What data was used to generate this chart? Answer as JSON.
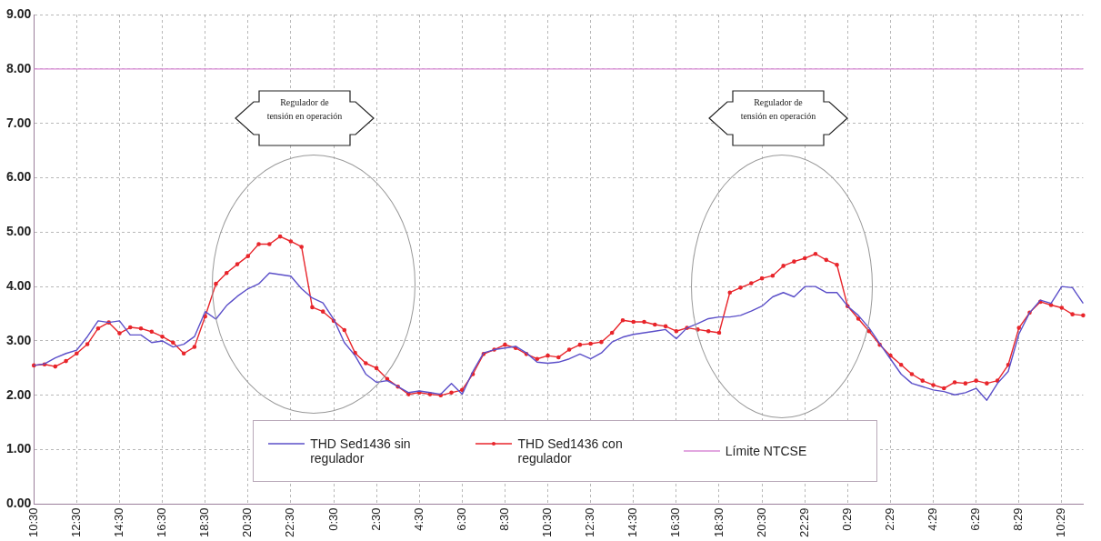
{
  "chart_data": {
    "type": "line",
    "categories": [
      "10:30",
      null,
      null,
      null,
      "12:30",
      null,
      null,
      null,
      "14:30",
      null,
      null,
      null,
      "16:30",
      null,
      null,
      null,
      "18:30",
      null,
      null,
      null,
      "20:30",
      null,
      null,
      null,
      "22:30",
      null,
      null,
      null,
      "0:30",
      null,
      null,
      null,
      "2:30",
      null,
      null,
      null,
      "4:30",
      null,
      null,
      null,
      "6:30",
      null,
      null,
      null,
      "8:30",
      null,
      null,
      null,
      "10:30",
      null,
      null,
      null,
      "12:30",
      null,
      null,
      null,
      "14:30",
      null,
      null,
      null,
      "16:30",
      null,
      null,
      null,
      "18:30",
      null,
      null,
      null,
      "20:30",
      null,
      null,
      null,
      "22:29",
      null,
      null,
      null,
      "0:29",
      null,
      null,
      null,
      "2:29",
      null,
      null,
      null,
      "4:29",
      null,
      null,
      null,
      "6:29",
      null,
      null,
      null,
      "8:29",
      null,
      null,
      null,
      "10:29",
      null,
      null
    ],
    "series": [
      {
        "name": "THD  Sed1436 sin regulador",
        "color": "#5b4fc9",
        "values": [
          2.55,
          2.58,
          2.69,
          2.77,
          2.83,
          3.08,
          3.37,
          3.34,
          3.37,
          3.11,
          3.11,
          2.97,
          3.0,
          2.89,
          2.94,
          3.08,
          3.54,
          3.4,
          3.65,
          3.82,
          3.96,
          4.05,
          4.25,
          4.22,
          4.19,
          3.96,
          3.79,
          3.7,
          3.4,
          2.97,
          2.73,
          2.39,
          2.24,
          2.27,
          2.16,
          2.05,
          2.08,
          2.05,
          2.02,
          2.22,
          2.02,
          2.44,
          2.78,
          2.84,
          2.87,
          2.9,
          2.78,
          2.61,
          2.59,
          2.61,
          2.67,
          2.76,
          2.67,
          2.78,
          2.98,
          3.07,
          3.12,
          3.15,
          3.18,
          3.21,
          3.04,
          3.24,
          3.32,
          3.41,
          3.44,
          3.44,
          3.47,
          3.55,
          3.64,
          3.81,
          3.89,
          3.81,
          4.0,
          4.0,
          3.89,
          3.89,
          3.64,
          3.47,
          3.24,
          2.95,
          2.67,
          2.39,
          2.22,
          2.16,
          2.1,
          2.07,
          2.01,
          2.05,
          2.13,
          1.91,
          2.22,
          2.44,
          3.13,
          3.52,
          3.75,
          3.69,
          4.0,
          3.98,
          3.69
        ]
      },
      {
        "name": "THD  Sed1436 con regulador",
        "color": "#e8252b",
        "marker": "circle",
        "values": [
          2.55,
          2.57,
          2.53,
          2.63,
          2.77,
          2.94,
          3.23,
          3.34,
          3.14,
          3.25,
          3.23,
          3.17,
          3.08,
          2.97,
          2.77,
          2.89,
          3.45,
          4.05,
          4.25,
          4.41,
          4.56,
          4.78,
          4.78,
          4.92,
          4.83,
          4.73,
          3.62,
          3.54,
          3.37,
          3.2,
          2.78,
          2.59,
          2.5,
          2.3,
          2.16,
          2.02,
          2.05,
          2.02,
          2.0,
          2.05,
          2.1,
          2.39,
          2.76,
          2.84,
          2.93,
          2.87,
          2.76,
          2.67,
          2.73,
          2.7,
          2.84,
          2.93,
          2.95,
          2.98,
          3.15,
          3.38,
          3.35,
          3.35,
          3.3,
          3.27,
          3.18,
          3.24,
          3.21,
          3.18,
          3.15,
          3.89,
          3.98,
          4.06,
          4.15,
          4.2,
          4.38,
          4.46,
          4.52,
          4.6,
          4.49,
          4.4,
          3.64,
          3.41,
          3.18,
          2.93,
          2.73,
          2.56,
          2.39,
          2.27,
          2.19,
          2.13,
          2.24,
          2.22,
          2.27,
          2.22,
          2.27,
          2.56,
          3.24,
          3.52,
          3.72,
          3.66,
          3.61,
          3.49,
          3.47
        ]
      },
      {
        "name": "Límite NTCSE",
        "color": "#d98ad6",
        "values": [
          8,
          8,
          8,
          8,
          8,
          8,
          8,
          8,
          8,
          8,
          8,
          8,
          8,
          8,
          8,
          8,
          8,
          8,
          8,
          8,
          8,
          8,
          8,
          8,
          8,
          8,
          8,
          8,
          8,
          8,
          8,
          8,
          8,
          8,
          8,
          8,
          8,
          8,
          8,
          8,
          8,
          8,
          8,
          8,
          8,
          8,
          8,
          8,
          8,
          8,
          8,
          8,
          8,
          8,
          8,
          8,
          8,
          8,
          8,
          8,
          8,
          8,
          8,
          8,
          8,
          8,
          8,
          8,
          8,
          8,
          8,
          8,
          8,
          8,
          8,
          8,
          8,
          8,
          8,
          8,
          8,
          8,
          8,
          8,
          8,
          8,
          8,
          8,
          8,
          8,
          8,
          8,
          8,
          8,
          8,
          8,
          8,
          8,
          8
        ]
      }
    ],
    "ylim": [
      0,
      9
    ],
    "yticks": [
      {
        "value": 0,
        "label": "0.00"
      },
      {
        "value": 1,
        "label": "1.00"
      },
      {
        "value": 2,
        "label": "2.00"
      },
      {
        "value": 3,
        "label": "3.00"
      },
      {
        "value": 4,
        "label": "4.00"
      },
      {
        "value": 5,
        "label": "5.00"
      },
      {
        "value": 6,
        "label": "6.00"
      },
      {
        "value": 7,
        "label": "7.00"
      },
      {
        "value": 8,
        "label": "8.00"
      },
      {
        "value": 9,
        "label": "9.00"
      }
    ],
    "grid": true,
    "legend": "bottom",
    "marker": "none",
    "annotations": [
      "Regulador de tensión en operación",
      "Regulador de tensión en operación"
    ]
  }
}
